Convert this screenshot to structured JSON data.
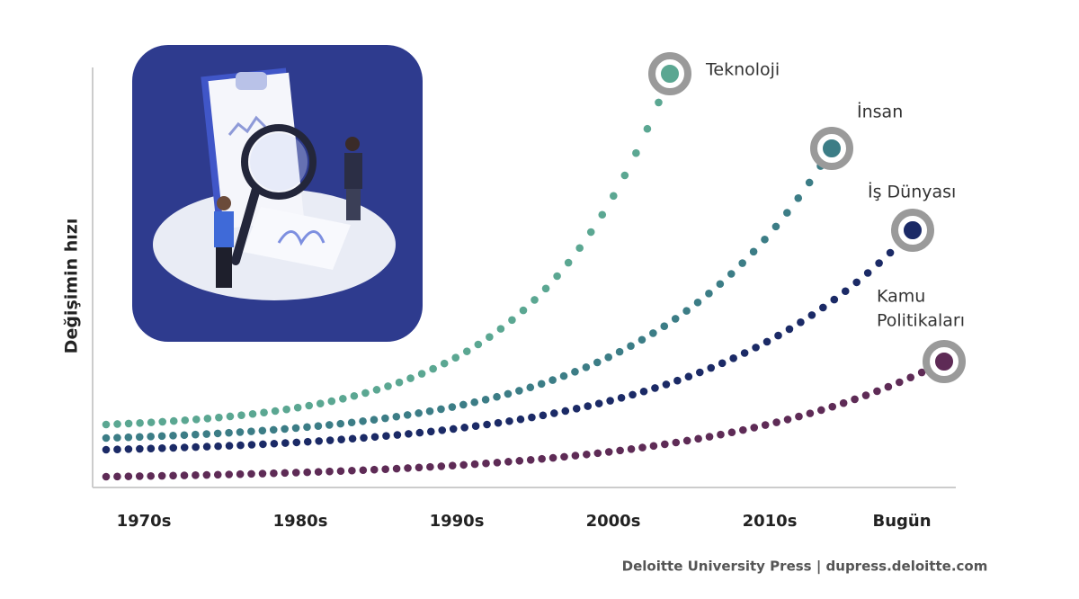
{
  "y_axis_label": "Değişimin hızı",
  "x_labels": [
    "1970s",
    "1980s",
    "1990s",
    "2000s",
    "2010s",
    "Bugün"
  ],
  "curves": [
    {
      "label": [
        "Teknoloji"
      ],
      "color": "#5ba792"
    },
    {
      "label": [
        "İnsan"
      ],
      "color": "#3c7d86"
    },
    {
      "label": [
        "İş Dünyası"
      ],
      "color": "#1b2a66"
    },
    {
      "label": [
        "Kamu",
        "Politikaları"
      ],
      "color": "#5e2b56"
    }
  ],
  "source": "Deloitte University Press  |  dupress.deloitte.com"
}
